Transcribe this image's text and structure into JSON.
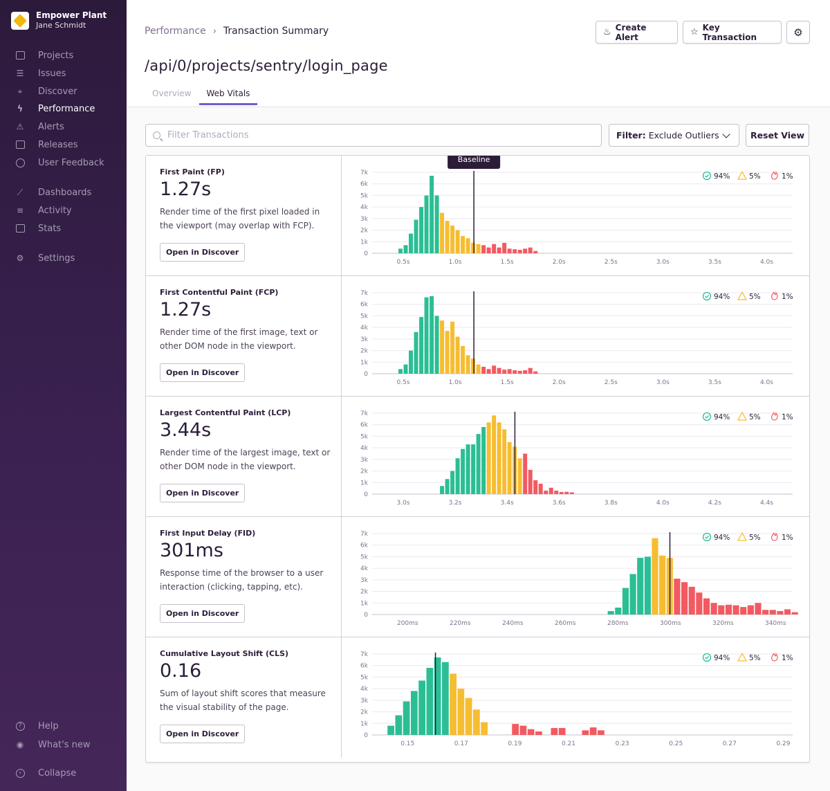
{
  "sidebar": {
    "org_name": "Empower Plant",
    "user_name": "Jane Schmidt",
    "items": [
      {
        "label": "Projects",
        "icon": "projects-icon"
      },
      {
        "label": "Issues",
        "icon": "issues-icon"
      },
      {
        "label": "Discover",
        "icon": "discover-icon"
      },
      {
        "label": "Performance",
        "icon": "performance-icon",
        "active": true
      },
      {
        "label": "Alerts",
        "icon": "alerts-icon"
      },
      {
        "label": "Releases",
        "icon": "releases-icon"
      },
      {
        "label": "User Feedback",
        "icon": "user-feedback-icon"
      },
      {
        "label": "Dashboards",
        "icon": "dashboards-icon"
      },
      {
        "label": "Activity",
        "icon": "activity-icon"
      },
      {
        "label": "Stats",
        "icon": "stats-icon"
      },
      {
        "label": "Settings",
        "icon": "settings-icon"
      }
    ],
    "help": "Help",
    "whats_new": "What's new",
    "collapse": "Collapse"
  },
  "header": {
    "breadcrumb_parent": "Performance",
    "breadcrumb_current": "Transaction Summary",
    "title": "/api/0/projects/sentry/login_page",
    "create_alert": "Create Alert",
    "key_transaction": "Key Transaction",
    "tabs": [
      {
        "label": "Overview"
      },
      {
        "label": "Web Vitals",
        "active": true
      }
    ]
  },
  "toolbar": {
    "search_placeholder": "Filter Transactions",
    "filter_label": "Filter:",
    "filter_value": "Exclude Outliers",
    "reset": "Reset View"
  },
  "colors": {
    "good": "#2bbe95",
    "meh": "#f6bd30",
    "poor": "#f25a62",
    "baseline": "#2b1d38"
  },
  "baseline_label": "Baseline",
  "vitals": [
    {
      "name": "First Paint (FP)",
      "value": "1.27s",
      "description": "Render time of the first pixel loaded in the viewport (may overlap with FCP).",
      "button": "Open in Discover",
      "legend": {
        "good": "94%",
        "meh": "5%",
        "poor": "1%"
      },
      "show_tooltip": true
    },
    {
      "name": "First Contentful Paint (FCP)",
      "value": "1.27s",
      "description": "Render time of the first image, text or other DOM node in the viewport.",
      "button": "Open in Discover",
      "legend": {
        "good": "94%",
        "meh": "5%",
        "poor": "1%"
      }
    },
    {
      "name": "Largest Contentful Paint (LCP)",
      "value": "3.44s",
      "description": "Render time of the largest image, text or other DOM node in the viewport.",
      "button": "Open in Discover",
      "legend": {
        "good": "94%",
        "meh": "5%",
        "poor": "1%"
      }
    },
    {
      "name": "First Input Delay (FID)",
      "value": "301ms",
      "description": "Response time of the browser to a user interaction (clicking, tapping, etc).",
      "button": "Open in Discover",
      "legend": {
        "good": "94%",
        "meh": "5%",
        "poor": "1%"
      }
    },
    {
      "name": "Cumulative Layout Shift (CLS)",
      "value": "0.16",
      "description": "Sum of layout shift scores that measure the visual stability of the page.",
      "button": "Open in Discover",
      "legend": {
        "good": "94%",
        "meh": "5%",
        "poor": "1%"
      }
    }
  ],
  "chart_data": [
    {
      "type": "bar",
      "title": "First Paint (FP)",
      "yticks": [
        "0",
        "1k",
        "2k",
        "3k",
        "4k",
        "5k",
        "6k",
        "7k"
      ],
      "ylim": [
        0,
        7000
      ],
      "xticks": [
        "0.5s",
        "1.0s",
        "1.5s",
        "2.0s",
        "2.5s",
        "3.0s",
        "3.5s",
        "4.0s"
      ],
      "xlim": [
        0.2,
        4.25
      ],
      "xtick_values": [
        0.5,
        1.0,
        1.5,
        2.0,
        2.5,
        3.0,
        3.5,
        4.0
      ],
      "bin_start": 0.45,
      "bin_width": 0.05,
      "baseline": 1.18,
      "good_bins": 8,
      "meh_bins": 8,
      "values": [
        400,
        700,
        1700,
        2900,
        4000,
        5000,
        6700,
        5000,
        3500,
        2800,
        2400,
        2000,
        1500,
        1300,
        900,
        800,
        700,
        500,
        800,
        500,
        900,
        400,
        350,
        300,
        400,
        500,
        200
      ]
    },
    {
      "type": "bar",
      "title": "First Contentful Paint (FCP)",
      "yticks": [
        "0",
        "1k",
        "2k",
        "3k",
        "4k",
        "5k",
        "6k",
        "7k"
      ],
      "ylim": [
        0,
        7000
      ],
      "xticks": [
        "0.5s",
        "1.0s",
        "1.5s",
        "2.0s",
        "2.5s",
        "3.0s",
        "3.5s",
        "4.0s"
      ],
      "xlim": [
        0.2,
        4.25
      ],
      "xtick_values": [
        0.5,
        1.0,
        1.5,
        2.0,
        2.5,
        3.0,
        3.5,
        4.0
      ],
      "bin_start": 0.45,
      "bin_width": 0.05,
      "baseline": 1.18,
      "good_bins": 8,
      "meh_bins": 8,
      "values": [
        400,
        800,
        2000,
        3600,
        4900,
        6600,
        6700,
        5000,
        4600,
        3700,
        4500,
        3200,
        2400,
        1600,
        1300,
        800,
        600,
        400,
        700,
        500,
        350,
        400,
        300,
        250,
        300,
        500,
        200
      ]
    },
    {
      "type": "bar",
      "title": "Largest Contentful Paint (LCP)",
      "yticks": [
        "0",
        "1k",
        "2k",
        "3k",
        "4k",
        "5k",
        "6k",
        "7k"
      ],
      "ylim": [
        0,
        7000
      ],
      "xticks": [
        "3.0s",
        "3.2s",
        "3.4s",
        "3.6s",
        "3.8s",
        "4.0s",
        "4.2s",
        "4.4s"
      ],
      "xlim": [
        2.88,
        4.5
      ],
      "xtick_values": [
        3.0,
        3.2,
        3.4,
        3.6,
        3.8,
        4.0,
        4.2,
        4.4
      ],
      "bin_start": 3.14,
      "bin_width": 0.02,
      "baseline": 3.43,
      "good_bins": 9,
      "meh_bins": 7,
      "values": [
        700,
        1300,
        2000,
        3100,
        3900,
        4300,
        4300,
        5200,
        5800,
        6200,
        6800,
        6200,
        5600,
        4500,
        4100,
        3100,
        3500,
        2100,
        1200,
        900,
        300,
        550,
        300,
        180,
        200,
        150
      ]
    },
    {
      "type": "bar",
      "title": "First Input Delay (FID)",
      "yticks": [
        "0",
        "1k",
        "2k",
        "3k",
        "4k",
        "5k",
        "6k",
        "7k"
      ],
      "ylim": [
        0,
        7000
      ],
      "xticks": [
        "200ms",
        "220ms",
        "240ms",
        "260ms",
        "280ms",
        "300ms",
        "320ms",
        "340ms"
      ],
      "xlim": [
        186.5,
        346.5
      ],
      "xtick_values": [
        200,
        220,
        240,
        260,
        280,
        300,
        320,
        340
      ],
      "bin_start": 276,
      "bin_width": 2.8,
      "baseline": 299.8,
      "good_bins": 6,
      "meh_bins": 3,
      "values": [
        300,
        600,
        2300,
        3500,
        4900,
        5000,
        6600,
        5100,
        4900,
        3100,
        2800,
        2400,
        1900,
        1400,
        1000,
        800,
        850,
        800,
        650,
        800,
        1000,
        400,
        400,
        300,
        450,
        200
      ]
    },
    {
      "type": "bar",
      "title": "Cumulative Layout Shift (CLS)",
      "yticks": [
        "0",
        "1k",
        "2k",
        "3k",
        "4k",
        "5k",
        "6k",
        "7k"
      ],
      "ylim": [
        0,
        7000
      ],
      "xticks": [
        "0.15",
        "0.17",
        "0.19",
        "0.21",
        "0.23",
        "0.25",
        "0.27",
        "0.29"
      ],
      "xlim": [
        0.1368,
        0.2935
      ],
      "xtick_values": [
        0.15,
        0.17,
        0.19,
        0.21,
        0.23,
        0.25,
        0.27,
        0.29
      ],
      "bin_start": 0.1424,
      "bin_width": 0.0029,
      "baseline": 0.1604,
      "good_bins": 8,
      "meh_bins": 5,
      "values": [
        800,
        1700,
        2900,
        3800,
        4700,
        5800,
        6700,
        6300,
        5300,
        4000,
        3200,
        2200,
        1100,
        0,
        0,
        0,
        950,
        800,
        500,
        300,
        0,
        600,
        600,
        0,
        0,
        400,
        650,
        400
      ]
    }
  ]
}
